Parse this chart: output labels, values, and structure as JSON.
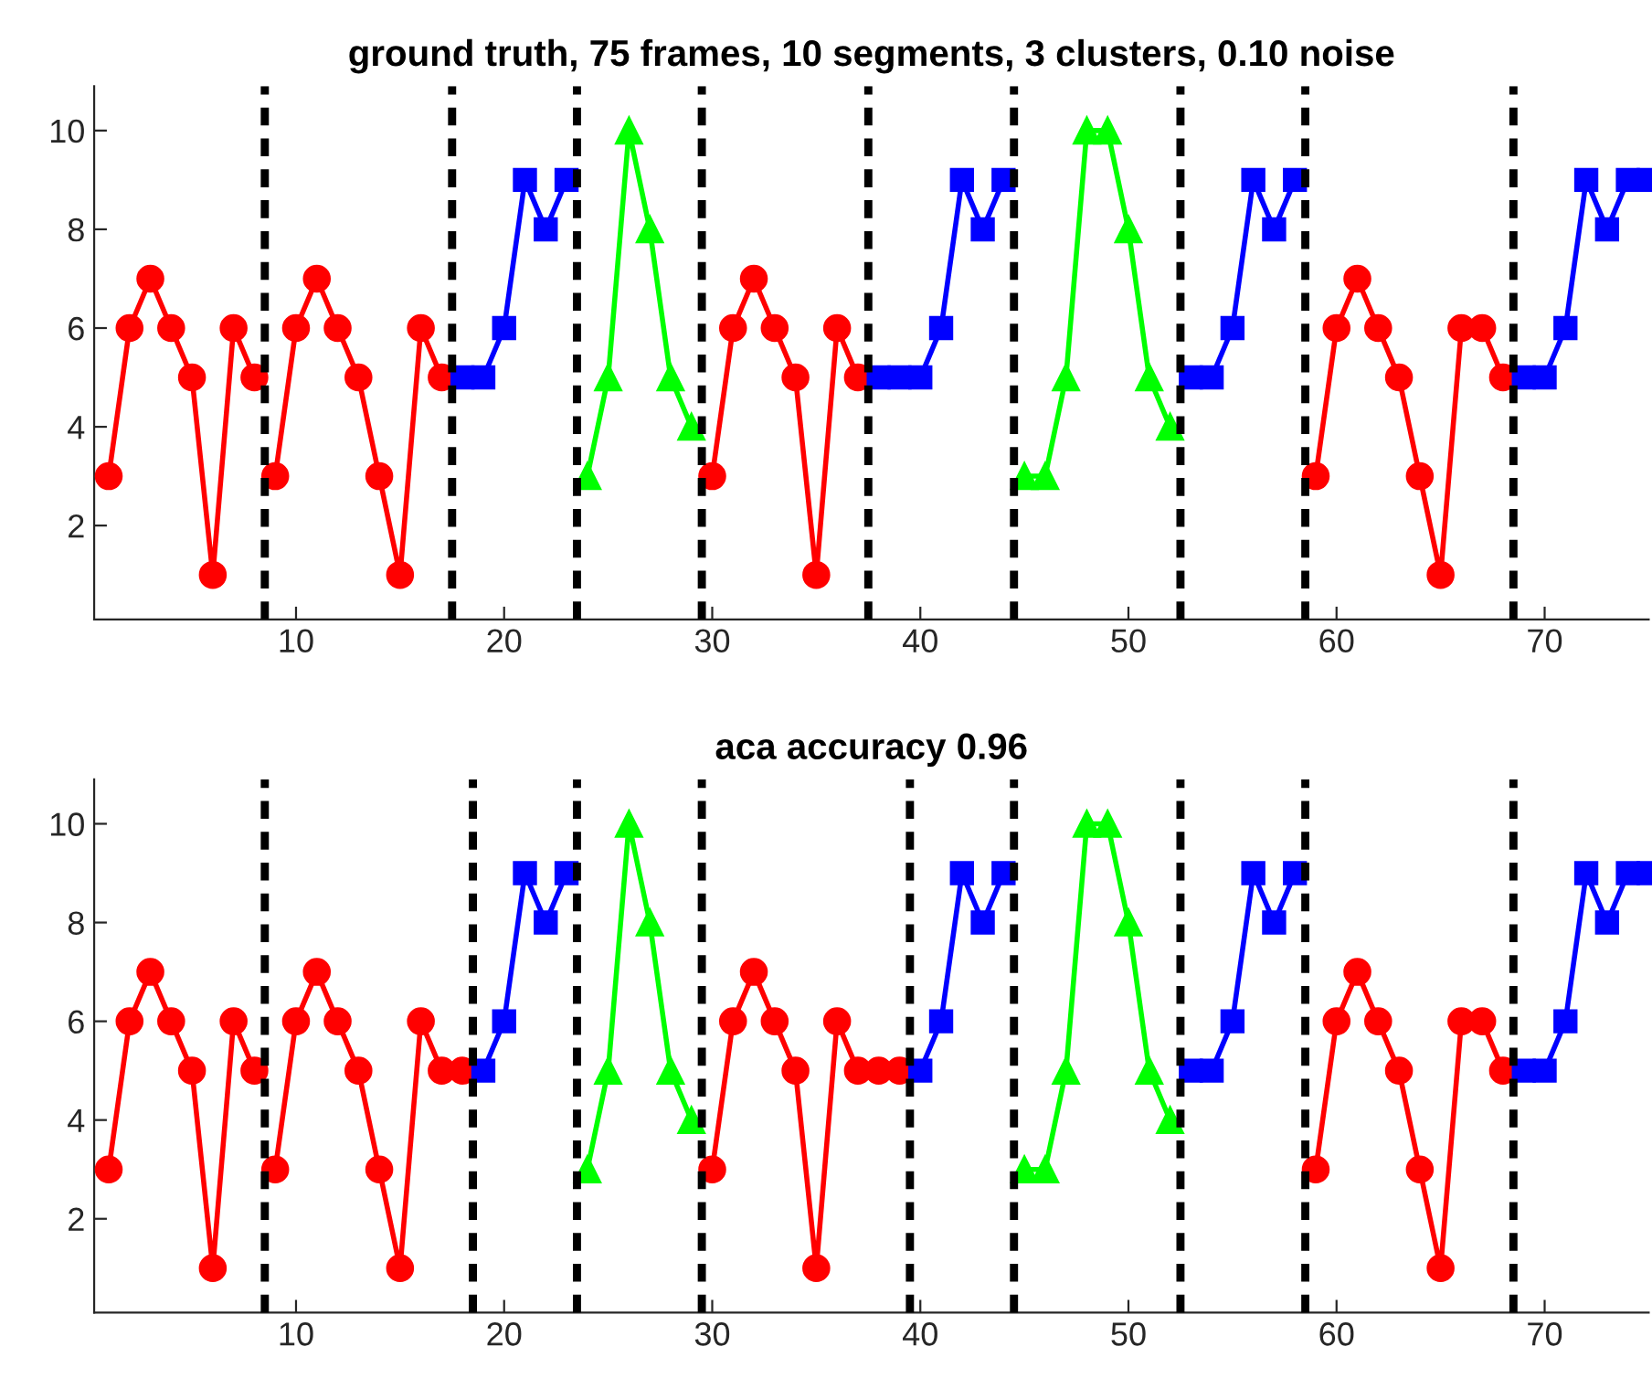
{
  "chart_data": [
    {
      "type": "line",
      "title": "ground truth, 75 frames, 10 segments, 3 clusters, 0.10 noise",
      "xlim": [
        0.3,
        75
      ],
      "ylim": [
        0.1,
        10.9
      ],
      "xticks": [
        10,
        20,
        30,
        40,
        50,
        60,
        70
      ],
      "yticks": [
        2,
        4,
        6,
        8,
        10
      ],
      "grid": false,
      "line_style": "solid",
      "series": [
        {
          "color": "#ff0000",
          "marker": "circle",
          "x": [
            1,
            2,
            3,
            4,
            5,
            6,
            7,
            8
          ],
          "values": [
            3,
            6,
            7,
            6,
            5,
            1,
            6,
            5
          ]
        },
        {
          "color": "#ff0000",
          "marker": "circle",
          "x": [
            9,
            10,
            11,
            12,
            13,
            14,
            15,
            16,
            17
          ],
          "values": [
            3,
            6,
            7,
            6,
            5,
            3,
            1,
            6,
            5
          ]
        },
        {
          "color": "#0000ff",
          "marker": "square",
          "x": [
            18,
            19,
            20,
            21,
            22,
            23
          ],
          "values": [
            5,
            5,
            6,
            9,
            8,
            9
          ]
        },
        {
          "color": "#00ff00",
          "marker": "triangle",
          "x": [
            24,
            25,
            26,
            27,
            28,
            29
          ],
          "values": [
            3,
            5,
            10,
            8,
            5,
            4
          ]
        },
        {
          "color": "#ff0000",
          "marker": "circle",
          "x": [
            30,
            31,
            32,
            33,
            34,
            35,
            36,
            37
          ],
          "values": [
            3,
            6,
            7,
            6,
            5,
            1,
            6,
            5
          ]
        },
        {
          "color": "#0000ff",
          "marker": "square",
          "x": [
            38,
            39,
            40,
            41,
            42,
            43,
            44
          ],
          "values": [
            5,
            5,
            5,
            6,
            9,
            8,
            9
          ]
        },
        {
          "color": "#00ff00",
          "marker": "triangle",
          "x": [
            45,
            46,
            47,
            48,
            49,
            50,
            51,
            52
          ],
          "values": [
            3,
            3,
            5,
            10,
            10,
            8,
            5,
            4
          ]
        },
        {
          "color": "#0000ff",
          "marker": "square",
          "x": [
            53,
            54,
            55,
            56,
            57,
            58
          ],
          "values": [
            5,
            5,
            6,
            9,
            8,
            9
          ]
        },
        {
          "color": "#ff0000",
          "marker": "circle",
          "x": [
            59,
            60,
            61,
            62,
            63,
            64,
            65,
            66,
            67,
            68
          ],
          "values": [
            3,
            6,
            7,
            6,
            5,
            3,
            1,
            6,
            6,
            5
          ]
        },
        {
          "color": "#0000ff",
          "marker": "square",
          "x": [
            69,
            70,
            71,
            72,
            73,
            74,
            75
          ],
          "values": [
            5,
            5,
            6,
            9,
            8,
            9,
            9
          ]
        }
      ],
      "ref_lines": [
        {
          "axis": "x",
          "value": 8.5,
          "color": "#000000",
          "line_style": "dashed"
        },
        {
          "axis": "x",
          "value": 17.5,
          "color": "#000000",
          "line_style": "dashed"
        },
        {
          "axis": "x",
          "value": 23.5,
          "color": "#000000",
          "line_style": "dashed"
        },
        {
          "axis": "x",
          "value": 29.5,
          "color": "#000000",
          "line_style": "dashed"
        },
        {
          "axis": "x",
          "value": 37.5,
          "color": "#000000",
          "line_style": "dashed"
        },
        {
          "axis": "x",
          "value": 44.5,
          "color": "#000000",
          "line_style": "dashed"
        },
        {
          "axis": "x",
          "value": 52.5,
          "color": "#000000",
          "line_style": "dashed"
        },
        {
          "axis": "x",
          "value": 58.5,
          "color": "#000000",
          "line_style": "dashed"
        },
        {
          "axis": "x",
          "value": 68.5,
          "color": "#000000",
          "line_style": "dashed"
        }
      ]
    },
    {
      "type": "line",
      "title": "aca accuracy 0.96",
      "xlim": [
        0.3,
        75
      ],
      "ylim": [
        0.1,
        10.9
      ],
      "xticks": [
        10,
        20,
        30,
        40,
        50,
        60,
        70
      ],
      "yticks": [
        2,
        4,
        6,
        8,
        10
      ],
      "grid": false,
      "line_style": "solid",
      "series": [
        {
          "color": "#ff0000",
          "marker": "circle",
          "x": [
            1,
            2,
            3,
            4,
            5,
            6,
            7,
            8
          ],
          "values": [
            3,
            6,
            7,
            6,
            5,
            1,
            6,
            5
          ]
        },
        {
          "color": "#ff0000",
          "marker": "circle",
          "x": [
            9,
            10,
            11,
            12,
            13,
            14,
            15,
            16,
            17,
            18
          ],
          "values": [
            3,
            6,
            7,
            6,
            5,
            3,
            1,
            6,
            5,
            5
          ]
        },
        {
          "color": "#0000ff",
          "marker": "square",
          "x": [
            19,
            20,
            21,
            22,
            23
          ],
          "values": [
            5,
            6,
            9,
            8,
            9
          ]
        },
        {
          "color": "#00ff00",
          "marker": "triangle",
          "x": [
            24,
            25,
            26,
            27,
            28,
            29
          ],
          "values": [
            3,
            5,
            10,
            8,
            5,
            4
          ]
        },
        {
          "color": "#ff0000",
          "marker": "circle",
          "x": [
            30,
            31,
            32,
            33,
            34,
            35,
            36,
            37,
            38,
            39
          ],
          "values": [
            3,
            6,
            7,
            6,
            5,
            1,
            6,
            5,
            5,
            5
          ]
        },
        {
          "color": "#0000ff",
          "marker": "square",
          "x": [
            40,
            41,
            42,
            43,
            44
          ],
          "values": [
            5,
            6,
            9,
            8,
            9
          ]
        },
        {
          "color": "#00ff00",
          "marker": "triangle",
          "x": [
            45,
            46,
            47,
            48,
            49,
            50,
            51,
            52
          ],
          "values": [
            3,
            3,
            5,
            10,
            10,
            8,
            5,
            4
          ]
        },
        {
          "color": "#0000ff",
          "marker": "square",
          "x": [
            53,
            54,
            55,
            56,
            57,
            58
          ],
          "values": [
            5,
            5,
            6,
            9,
            8,
            9
          ]
        },
        {
          "color": "#ff0000",
          "marker": "circle",
          "x": [
            59,
            60,
            61,
            62,
            63,
            64,
            65,
            66,
            67,
            68
          ],
          "values": [
            3,
            6,
            7,
            6,
            5,
            3,
            1,
            6,
            6,
            5
          ]
        },
        {
          "color": "#0000ff",
          "marker": "square",
          "x": [
            69,
            70,
            71,
            72,
            73,
            74,
            75
          ],
          "values": [
            5,
            5,
            6,
            9,
            8,
            9,
            9
          ]
        }
      ],
      "ref_lines": [
        {
          "axis": "x",
          "value": 8.5,
          "color": "#000000",
          "line_style": "dashed"
        },
        {
          "axis": "x",
          "value": 18.5,
          "color": "#000000",
          "line_style": "dashed"
        },
        {
          "axis": "x",
          "value": 23.5,
          "color": "#000000",
          "line_style": "dashed"
        },
        {
          "axis": "x",
          "value": 29.5,
          "color": "#000000",
          "line_style": "dashed"
        },
        {
          "axis": "x",
          "value": 39.5,
          "color": "#000000",
          "line_style": "dashed"
        },
        {
          "axis": "x",
          "value": 44.5,
          "color": "#000000",
          "line_style": "dashed"
        },
        {
          "axis": "x",
          "value": 52.5,
          "color": "#000000",
          "line_style": "dashed"
        },
        {
          "axis": "x",
          "value": 58.5,
          "color": "#000000",
          "line_style": "dashed"
        },
        {
          "axis": "x",
          "value": 68.5,
          "color": "#000000",
          "line_style": "dashed"
        }
      ]
    }
  ]
}
